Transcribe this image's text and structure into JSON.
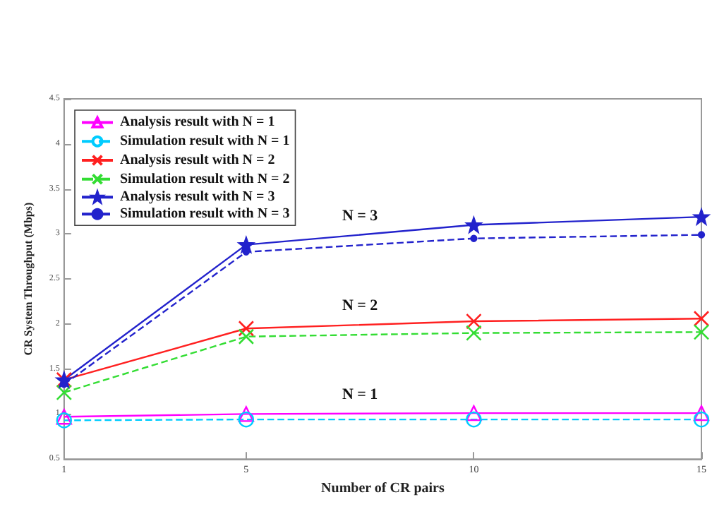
{
  "chart_data": {
    "type": "line",
    "xlabel": "Number of CR pairs",
    "ylabel": "CR System Throughput (Mbps)",
    "x": [
      1,
      5,
      10,
      15
    ],
    "xlim": [
      1,
      15
    ],
    "xticks": [
      1,
      5,
      10,
      15
    ],
    "ylim": [
      0.5,
      4.5
    ],
    "yticks": [
      0.5,
      1,
      1.5,
      2,
      2.5,
      3,
      3.5,
      4,
      4.5
    ],
    "grid": false,
    "legend": "top left",
    "series": [
      {
        "name": "Analysis result with N = 1",
        "color": "#ff00ff",
        "values": [
          0.97,
          1.0,
          1.01,
          1.01
        ],
        "marker": "triangle",
        "line_style": "solid"
      },
      {
        "name": "Simulation result with N = 1",
        "color": "#00ccff",
        "values": [
          0.93,
          0.94,
          0.94,
          0.94
        ],
        "marker": "circle",
        "line_style": "dashed"
      },
      {
        "name": "Analysis result with N = 2",
        "color": "#ff2020",
        "values": [
          1.38,
          1.95,
          2.03,
          2.06
        ],
        "marker": "cross",
        "line_style": "solid"
      },
      {
        "name": "Simulation result with N = 2",
        "color": "#33dd33",
        "values": [
          1.24,
          1.86,
          1.9,
          1.91
        ],
        "marker": "cross",
        "line_style": "dashed"
      },
      {
        "name": "Analysis result with N = 3",
        "color": "#2222cc",
        "values": [
          1.38,
          2.88,
          3.1,
          3.19
        ],
        "marker": "star",
        "line_style": "solid"
      },
      {
        "name": "Simulation result with N = 3",
        "color": "#2222cc",
        "values": [
          1.33,
          2.8,
          2.95,
          2.99
        ],
        "marker": "circle",
        "line_style": "dashed"
      }
    ],
    "annotations": [
      "N = 3",
      "N = 2",
      "N = 1"
    ]
  }
}
